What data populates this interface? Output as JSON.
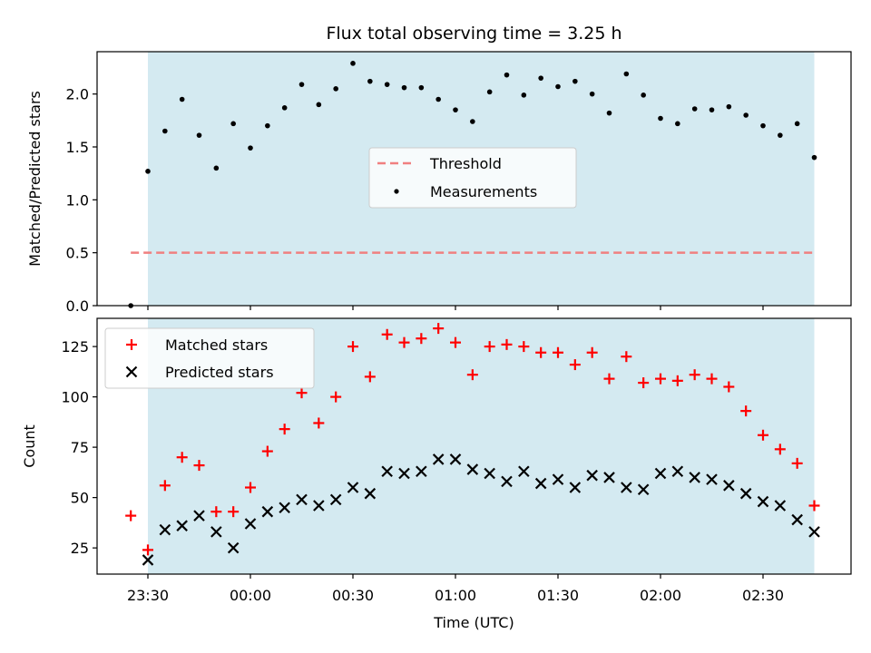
{
  "chart_data": [
    {
      "type": "scatter",
      "title": "Flux total observing time = 3.25 h",
      "ylabel": "Matched/Predicted stars",
      "xlabel": "",
      "ylim": [
        0,
        2.4
      ],
      "yticks": [
        "0.0",
        "0.5",
        "1.0",
        "1.5",
        "2.0"
      ],
      "shaded_span": {
        "start_min": 0,
        "end_min": 195,
        "color": "#d4eaf1"
      },
      "legend": {
        "placement": "center",
        "entries": [
          "Threshold",
          "Measurements"
        ]
      },
      "threshold": {
        "name": "Threshold",
        "value": 0.5,
        "x_start_min": -5,
        "x_end_min": 195,
        "color": "#f08080"
      },
      "series": [
        {
          "name": "Measurements",
          "color": "#000000",
          "x_min": [
            -5,
            0,
            5,
            10,
            15,
            20,
            25,
            30,
            35,
            40,
            45,
            50,
            55,
            60,
            65,
            70,
            75,
            80,
            85,
            90,
            95,
            100,
            105,
            110,
            115,
            120,
            125,
            130,
            135,
            140,
            145,
            150,
            155,
            160,
            165,
            170,
            175,
            180,
            185,
            190,
            195
          ],
          "values": [
            0.0,
            1.27,
            1.65,
            1.95,
            1.61,
            1.3,
            1.72,
            1.49,
            1.7,
            1.87,
            2.09,
            1.9,
            2.05,
            2.29,
            2.12,
            2.09,
            2.06,
            2.06,
            1.95,
            1.85,
            1.74,
            2.02,
            2.18,
            1.99,
            2.15,
            2.07,
            2.12,
            2.0,
            1.82,
            2.19,
            1.99,
            1.77,
            1.72,
            1.86,
            1.85,
            1.88,
            1.8,
            1.7,
            1.61,
            1.72,
            1.4
          ]
        }
      ]
    },
    {
      "type": "scatter",
      "title": "",
      "xlabel": "Time (UTC)",
      "ylabel": "Count",
      "ylim": [
        12,
        139
      ],
      "yticks": [
        "25",
        "50",
        "75",
        "100",
        "125"
      ],
      "x_tick_labels": [
        "23:30",
        "00:00",
        "00:30",
        "01:00",
        "01:30",
        "02:00",
        "02:30"
      ],
      "legend": {
        "placement": "top-left",
        "entries": [
          "Matched stars",
          "Predicted stars"
        ]
      },
      "series": [
        {
          "name": "Matched stars",
          "marker": "+",
          "color": "#ff0000",
          "x_min": [
            -5,
            0,
            5,
            10,
            15,
            20,
            25,
            30,
            35,
            40,
            45,
            50,
            55,
            60,
            65,
            70,
            75,
            80,
            85,
            90,
            95,
            100,
            105,
            110,
            115,
            120,
            125,
            130,
            135,
            140,
            145,
            150,
            155,
            160,
            165,
            170,
            175,
            180,
            185,
            190,
            195
          ],
          "values": [
            41,
            24,
            56,
            70,
            66,
            43,
            43,
            55,
            73,
            84,
            102,
            87,
            100,
            125,
            110,
            131,
            127,
            129,
            134,
            127,
            111,
            125,
            126,
            125,
            122,
            122,
            116,
            122,
            109,
            120,
            107,
            109,
            108,
            111,
            109,
            105,
            93,
            81,
            74,
            67,
            46
          ]
        },
        {
          "name": "Predicted stars",
          "marker": "x",
          "color": "#000000",
          "x_min": [
            0,
            5,
            10,
            15,
            20,
            25,
            30,
            35,
            40,
            45,
            50,
            55,
            60,
            65,
            70,
            75,
            80,
            85,
            90,
            95,
            100,
            105,
            110,
            115,
            120,
            125,
            130,
            135,
            140,
            145,
            150,
            155,
            160,
            165,
            170,
            175,
            180,
            185,
            190,
            195
          ],
          "values": [
            19,
            34,
            36,
            41,
            33,
            25,
            37,
            43,
            45,
            49,
            46,
            49,
            55,
            52,
            63,
            62,
            63,
            69,
            69,
            64,
            62,
            58,
            63,
            57,
            59,
            55,
            61,
            60,
            55,
            54,
            62,
            63,
            60,
            59,
            56,
            52,
            48,
            46,
            39,
            33
          ]
        }
      ]
    }
  ]
}
